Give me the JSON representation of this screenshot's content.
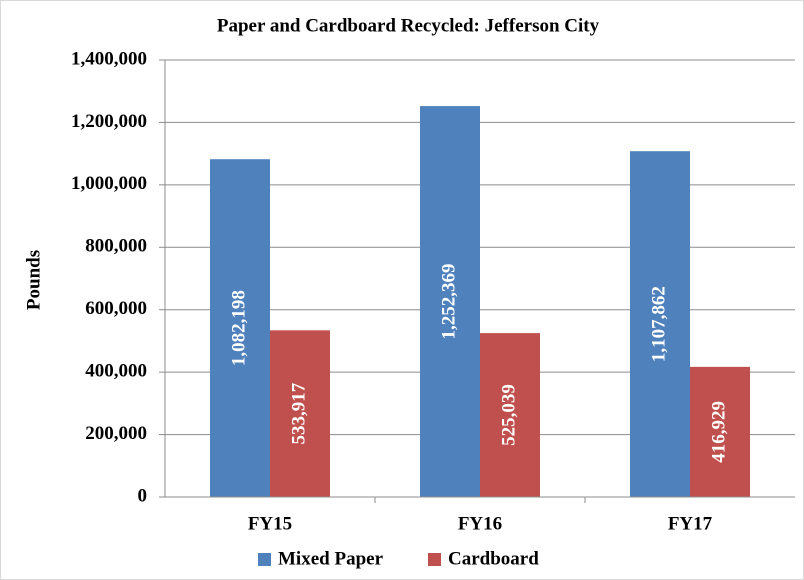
{
  "chart_data": {
    "type": "bar",
    "title": "Paper and Cardboard Recycled:  Jefferson City",
    "y_label": "Pounds",
    "categories": [
      "FY15",
      "FY16",
      "FY17"
    ],
    "series": [
      {
        "name": "Mixed Paper",
        "color": "#4f81bd",
        "values": [
          1082198,
          1252369,
          1107862
        ],
        "value_labels": [
          "1,082,198",
          "1,252,369",
          "1,107,862"
        ]
      },
      {
        "name": "Cardboard",
        "color": "#c0504d",
        "values": [
          533917,
          525039,
          416929
        ],
        "value_labels": [
          "533,917",
          "525,039",
          "416,929"
        ]
      }
    ],
    "ylim": [
      0,
      1400000
    ],
    "yticks": [
      0,
      {
        "value": 200000,
        "label": "200,000"
      },
      {
        "value": 400000,
        "label": "400,000"
      },
      {
        "value": 600000,
        "label": "600,000"
      },
      {
        "value": 800000,
        "label": "800,000"
      },
      {
        "value": 1000000,
        "label": "1,000,000"
      },
      {
        "value": 1200000,
        "label": "1,200,000"
      },
      {
        "value": 1400000,
        "label": "1,400,000"
      }
    ],
    "grid": true,
    "legend": "bottom"
  }
}
